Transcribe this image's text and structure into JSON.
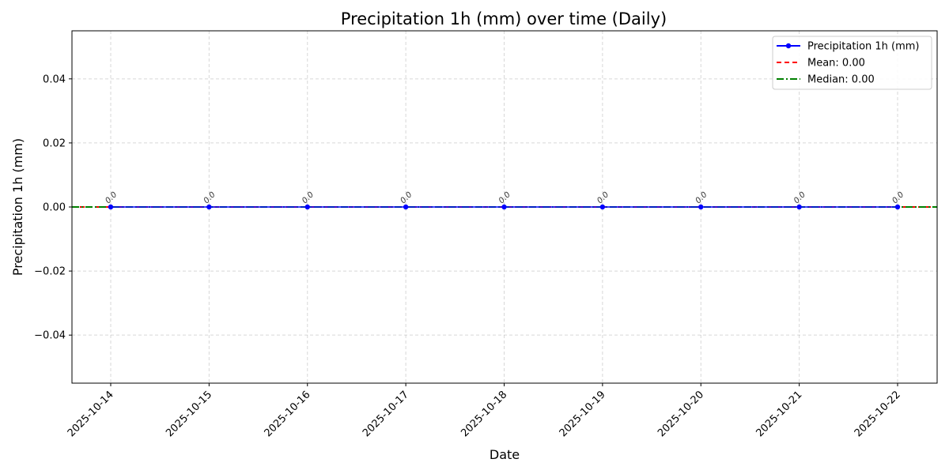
{
  "chart_data": {
    "type": "line",
    "title": "Precipitation 1h (mm) over time (Daily)",
    "xlabel": "Date",
    "ylabel": "Precipitation 1h (mm)",
    "x": [
      "2025-10-14",
      "2025-10-15",
      "2025-10-16",
      "2025-10-17",
      "2025-10-18",
      "2025-10-19",
      "2025-10-20",
      "2025-10-21",
      "2025-10-22"
    ],
    "series": [
      {
        "name": "Precipitation 1h (mm)",
        "values": [
          0.0,
          0.0,
          0.0,
          0.0,
          0.0,
          0.0,
          0.0,
          0.0,
          0.0
        ],
        "color": "#0000ff",
        "marker": "circle",
        "style": "solid"
      }
    ],
    "data_labels": [
      "0.0",
      "0.0",
      "0.0",
      "0.0",
      "0.0",
      "0.0",
      "0.0",
      "0.0",
      "0.0"
    ],
    "reference_lines": [
      {
        "name": "Mean: 0.00",
        "value": 0.0,
        "color": "#ff0000",
        "style": "dashed"
      },
      {
        "name": "Median: 0.00",
        "value": 0.0,
        "color": "#008000",
        "style": "dashdot"
      }
    ],
    "ylim": [
      -0.055,
      0.055
    ],
    "yticks": [
      -0.04,
      -0.02,
      0.0,
      0.02,
      0.04
    ],
    "ytick_labels": [
      "−0.04",
      "−0.02",
      "0.00",
      "0.02",
      "0.04"
    ],
    "grid": true,
    "legend_position": "top-right"
  }
}
